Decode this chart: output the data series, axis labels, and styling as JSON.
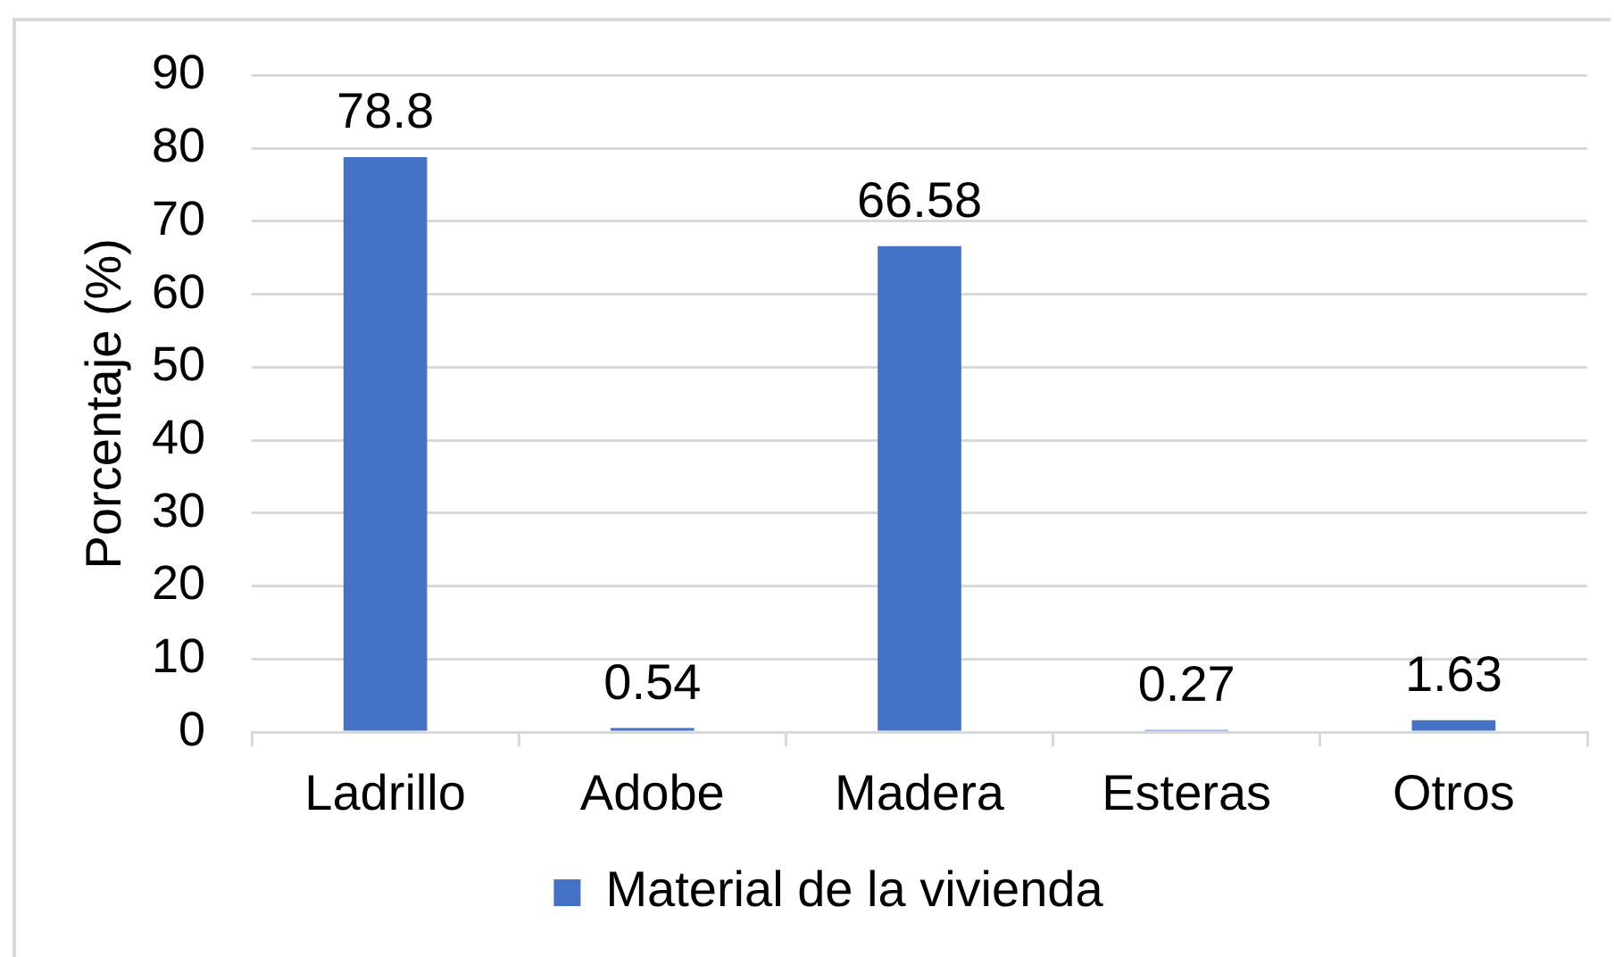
{
  "chart_data": {
    "type": "bar",
    "ylabel": "Porcentaje (%)",
    "categories": [
      "Ladrillo",
      "Adobe",
      "Madera",
      "Esteras",
      "Otros"
    ],
    "series": [
      {
        "name": "Material de la vivienda",
        "color": "#4472c4",
        "values": [
          78.8,
          0.54,
          66.58,
          0.27,
          1.63
        ]
      }
    ],
    "ylim": [
      0,
      90
    ],
    "yticks": [
      0,
      10,
      20,
      30,
      40,
      50,
      60,
      70,
      80,
      90
    ],
    "grid": "y",
    "legend": "bottom",
    "data_labels": true
  }
}
